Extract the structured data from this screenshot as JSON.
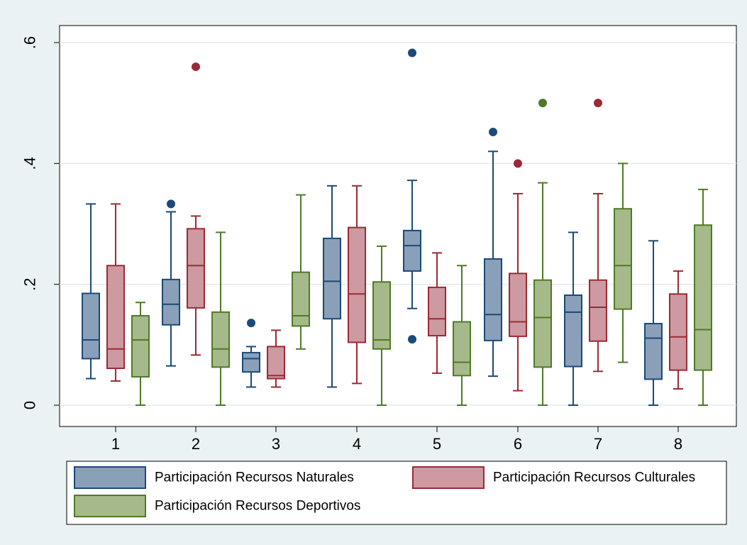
{
  "chart_data": {
    "type": "box",
    "categories": [
      "1",
      "2",
      "3",
      "4",
      "5",
      "6",
      "7",
      "8"
    ],
    "ylim": [
      0,
      0.6
    ],
    "yticks": [
      {
        "value": 0,
        "label": "0"
      },
      {
        "value": 0.2,
        "label": ".2"
      },
      {
        "value": 0.4,
        "label": ".4"
      },
      {
        "value": 0.6,
        "label": ".6"
      }
    ],
    "grid": true,
    "legend_position": "bottom",
    "series": [
      {
        "name": "Participación Recursos Naturales",
        "fill": "#8aa0b8",
        "stroke": "#1a4a78",
        "boxes": [
          {
            "min": 0.044,
            "q1": 0.077,
            "median": 0.108,
            "q3": 0.185,
            "max": 0.333,
            "outliers": []
          },
          {
            "min": 0.065,
            "q1": 0.133,
            "median": 0.167,
            "q3": 0.208,
            "max": 0.32,
            "outliers": [
              0.333
            ]
          },
          {
            "min": 0.03,
            "q1": 0.055,
            "median": 0.077,
            "q3": 0.087,
            "max": 0.097,
            "outliers": [
              0.136
            ]
          },
          {
            "min": 0.03,
            "q1": 0.143,
            "median": 0.205,
            "q3": 0.276,
            "max": 0.363,
            "outliers": []
          },
          {
            "min": 0.16,
            "q1": 0.222,
            "median": 0.264,
            "q3": 0.289,
            "max": 0.372,
            "outliers": [
              0.583,
              0.109
            ]
          },
          {
            "min": 0.048,
            "q1": 0.107,
            "median": 0.15,
            "q3": 0.242,
            "max": 0.42,
            "outliers": [
              0.452
            ]
          },
          {
            "min": 0.0,
            "q1": 0.064,
            "median": 0.154,
            "q3": 0.182,
            "max": 0.286,
            "outliers": []
          },
          {
            "min": 0.0,
            "q1": 0.043,
            "median": 0.111,
            "q3": 0.135,
            "max": 0.272,
            "outliers": []
          }
        ]
      },
      {
        "name": "Participación Recursos Culturales",
        "fill": "#cc9aa0",
        "stroke": "#9b2a35",
        "boxes": [
          {
            "min": 0.04,
            "q1": 0.061,
            "median": 0.093,
            "q3": 0.231,
            "max": 0.333,
            "outliers": []
          },
          {
            "min": 0.083,
            "q1": 0.161,
            "median": 0.231,
            "q3": 0.292,
            "max": 0.313,
            "outliers": [
              0.56
            ]
          },
          {
            "min": 0.03,
            "q1": 0.044,
            "median": 0.049,
            "q3": 0.097,
            "max": 0.124,
            "outliers": []
          },
          {
            "min": 0.036,
            "q1": 0.104,
            "median": 0.184,
            "q3": 0.294,
            "max": 0.363,
            "outliers": []
          },
          {
            "min": 0.053,
            "q1": 0.115,
            "median": 0.143,
            "q3": 0.195,
            "max": 0.252,
            "outliers": []
          },
          {
            "min": 0.024,
            "q1": 0.114,
            "median": 0.138,
            "q3": 0.218,
            "max": 0.35,
            "outliers": [
              0.4
            ]
          },
          {
            "min": 0.056,
            "q1": 0.106,
            "median": 0.162,
            "q3": 0.207,
            "max": 0.35,
            "outliers": [
              0.5
            ]
          },
          {
            "min": 0.027,
            "q1": 0.058,
            "median": 0.113,
            "q3": 0.184,
            "max": 0.222,
            "outliers": []
          }
        ]
      },
      {
        "name": "Participación Recursos Deportivos",
        "fill": "#a6b98a",
        "stroke": "#4e7b25",
        "boxes": [
          {
            "min": 0.0,
            "q1": 0.047,
            "median": 0.108,
            "q3": 0.148,
            "max": 0.17,
            "outliers": []
          },
          {
            "min": 0.0,
            "q1": 0.063,
            "median": 0.093,
            "q3": 0.154,
            "max": 0.286,
            "outliers": []
          },
          {
            "min": 0.093,
            "q1": 0.131,
            "median": 0.148,
            "q3": 0.22,
            "max": 0.348,
            "outliers": []
          },
          {
            "min": 0.0,
            "q1": 0.093,
            "median": 0.108,
            "q3": 0.204,
            "max": 0.263,
            "outliers": []
          },
          {
            "min": 0.0,
            "q1": 0.049,
            "median": 0.071,
            "q3": 0.138,
            "max": 0.231,
            "outliers": []
          },
          {
            "min": 0.0,
            "q1": 0.063,
            "median": 0.145,
            "q3": 0.207,
            "max": 0.368,
            "outliers": [
              0.5
            ]
          },
          {
            "min": 0.071,
            "q1": 0.159,
            "median": 0.231,
            "q3": 0.325,
            "max": 0.4,
            "outliers": []
          },
          {
            "min": 0.0,
            "q1": 0.058,
            "median": 0.125,
            "q3": 0.298,
            "max": 0.357,
            "outliers": []
          }
        ]
      }
    ]
  }
}
